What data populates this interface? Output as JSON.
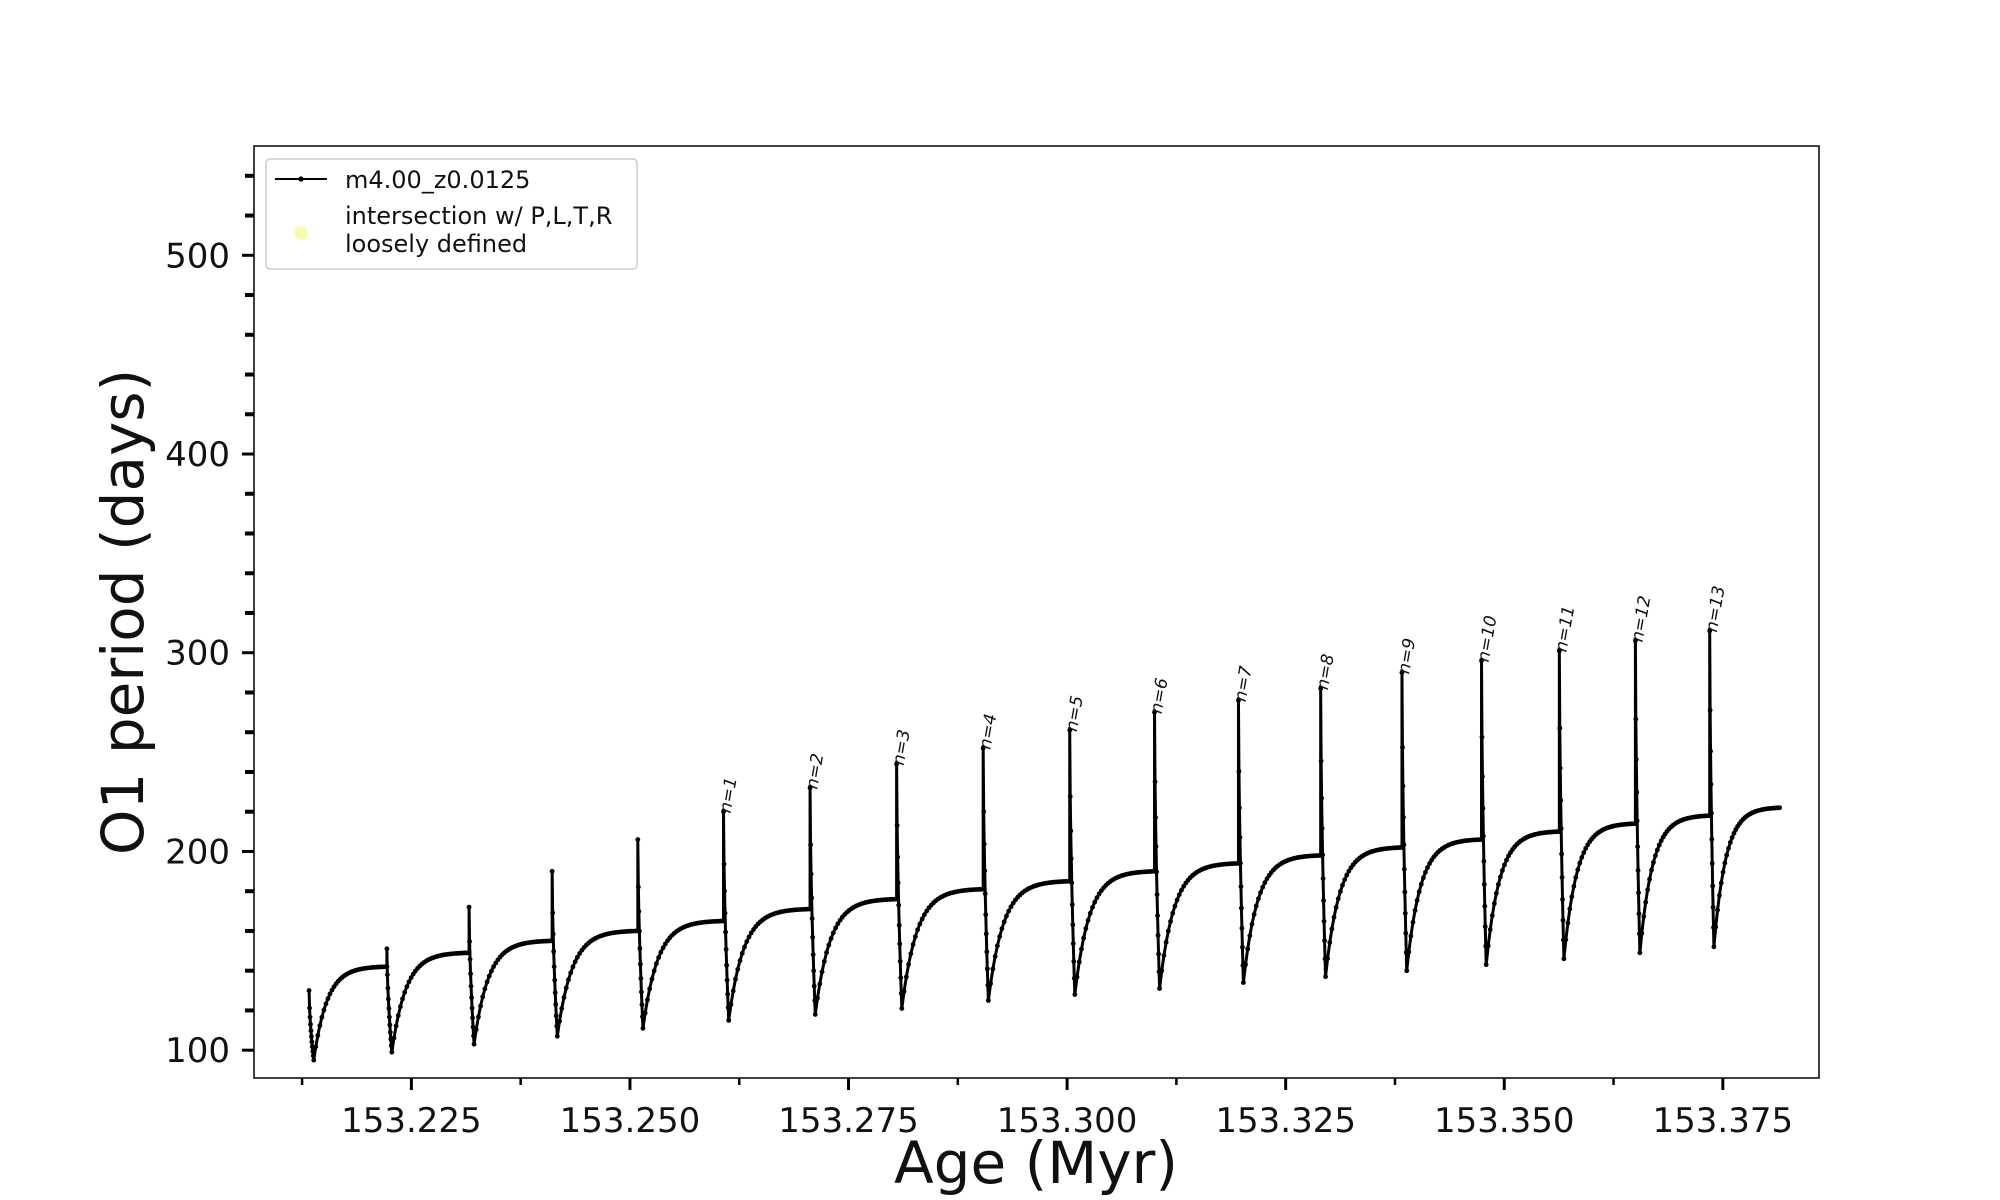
{
  "chart_data": {
    "type": "line",
    "xlabel": "Age (Myr)",
    "ylabel": "O1 period (days)",
    "xlim": [
      153.207,
      153.386
    ],
    "ylim": [
      86,
      555
    ],
    "xticks": [
      153.225,
      153.25,
      153.275,
      153.3,
      153.325,
      153.35,
      153.375
    ],
    "xtick_labels": [
      "153.225",
      "153.250",
      "153.275",
      "153.300",
      "153.325",
      "153.350",
      "153.375"
    ],
    "yticks": [
      100,
      200,
      300,
      400,
      500
    ],
    "ytick_labels": [
      "100",
      "200",
      "300",
      "400",
      "500"
    ],
    "grid": false,
    "legend": {
      "placement": "top-left",
      "entries": [
        {
          "label": "m4.00_z0.0125",
          "marker": "line-dot",
          "color": "#000000"
        },
        {
          "label": "intersection w/ P,L,T,R",
          "label2": "loosely defined",
          "marker": "circle",
          "color": "#fafab4"
        }
      ]
    },
    "series": [
      {
        "name": "m4.00_z0.0125",
        "color": "#000000",
        "cycles": [
          {
            "x_start": 153.2133,
            "x_end": 153.2222,
            "spike": 130,
            "dip": 95,
            "plateau": 142
          },
          {
            "x_start": 153.2222,
            "x_end": 153.2316,
            "spike": 151,
            "dip": 99,
            "plateau": 149
          },
          {
            "x_start": 153.2316,
            "x_end": 153.2411,
            "spike": 172,
            "dip": 103,
            "plateau": 155
          },
          {
            "x_start": 153.2411,
            "x_end": 153.2509,
            "spike": 190,
            "dip": 107,
            "plateau": 160
          },
          {
            "x_start": 153.2509,
            "x_end": 153.2607,
            "spike": 206,
            "dip": 111,
            "plateau": 165
          },
          {
            "x_start": 153.2607,
            "x_end": 153.2706,
            "spike": 220,
            "dip": 115,
            "plateau": 171
          },
          {
            "x_start": 153.2706,
            "x_end": 153.2805,
            "spike": 232,
            "dip": 118,
            "plateau": 176
          },
          {
            "x_start": 153.2805,
            "x_end": 153.2904,
            "spike": 244,
            "dip": 121,
            "plateau": 181
          },
          {
            "x_start": 153.2904,
            "x_end": 153.3003,
            "spike": 252,
            "dip": 125,
            "plateau": 185
          },
          {
            "x_start": 153.3003,
            "x_end": 153.31,
            "spike": 261,
            "dip": 128,
            "plateau": 190
          },
          {
            "x_start": 153.31,
            "x_end": 153.3196,
            "spike": 270,
            "dip": 131,
            "plateau": 194
          },
          {
            "x_start": 153.3196,
            "x_end": 153.329,
            "spike": 276,
            "dip": 134,
            "plateau": 198
          },
          {
            "x_start": 153.329,
            "x_end": 153.3383,
            "spike": 282,
            "dip": 137,
            "plateau": 202
          },
          {
            "x_start": 153.3383,
            "x_end": 153.3474,
            "spike": 290,
            "dip": 140,
            "plateau": 206
          },
          {
            "x_start": 153.3474,
            "x_end": 153.3563,
            "spike": 296,
            "dip": 143,
            "plateau": 210
          },
          {
            "x_start": 153.3563,
            "x_end": 153.365,
            "spike": 301,
            "dip": 146,
            "plateau": 214
          },
          {
            "x_start": 153.365,
            "x_end": 153.3735,
            "spike": 306,
            "dip": 149,
            "plateau": 218
          },
          {
            "x_start": 153.3735,
            "x_end": 153.3815,
            "spike": 311,
            "dip": 152,
            "plateau": 222
          }
        ]
      }
    ],
    "annotations": [
      {
        "text": "n=1",
        "x": 153.2607,
        "y": 220
      },
      {
        "text": "n=2",
        "x": 153.2706,
        "y": 232
      },
      {
        "text": "n=3",
        "x": 153.2805,
        "y": 244
      },
      {
        "text": "n=4",
        "x": 153.2904,
        "y": 252
      },
      {
        "text": "n=5",
        "x": 153.3003,
        "y": 261
      },
      {
        "text": "n=6",
        "x": 153.31,
        "y": 270
      },
      {
        "text": "n=7",
        "x": 153.3196,
        "y": 276
      },
      {
        "text": "n=8",
        "x": 153.329,
        "y": 282
      },
      {
        "text": "n=9",
        "x": 153.3383,
        "y": 290
      },
      {
        "text": "n=10",
        "x": 153.3474,
        "y": 296
      },
      {
        "text": "n=11",
        "x": 153.3563,
        "y": 301
      },
      {
        "text": "n=12",
        "x": 153.365,
        "y": 306
      },
      {
        "text": "n=13",
        "x": 153.3735,
        "y": 311
      }
    ]
  }
}
